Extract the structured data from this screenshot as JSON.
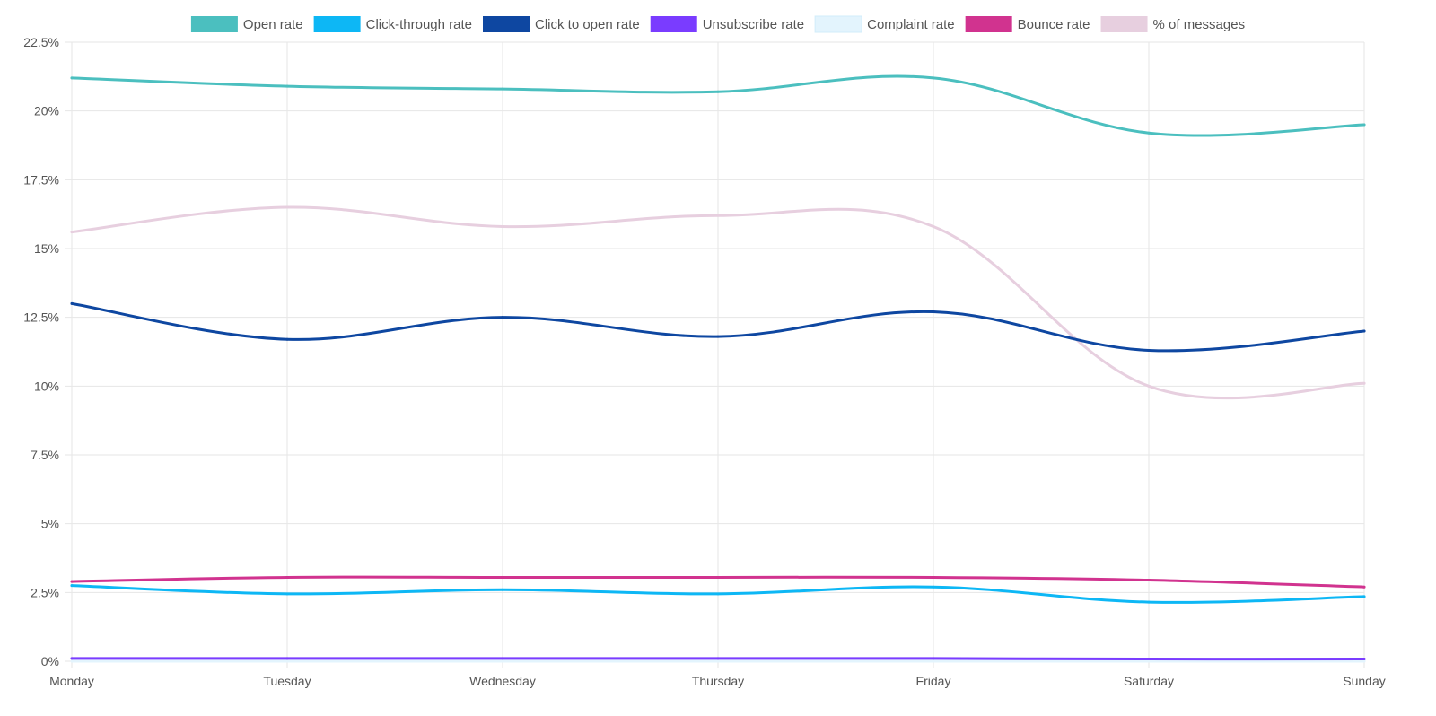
{
  "chart_data": {
    "type": "line",
    "title": "",
    "xlabel": "",
    "ylabel": "",
    "categories": [
      "Monday",
      "Tuesday",
      "Wednesday",
      "Thursday",
      "Friday",
      "Saturday",
      "Sunday"
    ],
    "ylim": [
      0,
      22.5
    ],
    "yticks": [
      0,
      2.5,
      5,
      7.5,
      10,
      12.5,
      15,
      17.5,
      20,
      22.5
    ],
    "ytick_labels": [
      "0%",
      "2.5%",
      "5%",
      "7.5%",
      "10%",
      "12.5%",
      "15%",
      "17.5%",
      "20%",
      "22.5%"
    ],
    "grid": true,
    "legend_position": "top-center",
    "series": [
      {
        "name": "Open rate",
        "color": "#4BBFBF",
        "values": [
          21.2,
          20.9,
          20.8,
          20.7,
          21.2,
          19.2,
          19.5
        ]
      },
      {
        "name": "Click-through rate",
        "color": "#0DB7F5",
        "values": [
          2.75,
          2.45,
          2.6,
          2.45,
          2.7,
          2.15,
          2.35
        ]
      },
      {
        "name": "Click to open rate",
        "color": "#0E47A1",
        "values": [
          13.0,
          11.7,
          12.5,
          11.8,
          12.7,
          11.3,
          12.0
        ]
      },
      {
        "name": "Unsubscribe rate",
        "color": "#7A3CFF",
        "values": [
          0.1,
          0.1,
          0.1,
          0.1,
          0.1,
          0.08,
          0.08
        ]
      },
      {
        "name": "Complaint rate",
        "color": "#E3F4FD",
        "values": [
          0.0,
          0.0,
          0.0,
          0.0,
          0.0,
          0.0,
          0.0
        ]
      },
      {
        "name": "Bounce rate",
        "color": "#D1338F",
        "values": [
          2.9,
          3.05,
          3.05,
          3.05,
          3.05,
          2.95,
          2.7
        ]
      },
      {
        "name": "% of messages",
        "color": "#E7CFDF",
        "values": [
          15.6,
          16.5,
          15.8,
          16.2,
          15.8,
          10.0,
          10.1
        ]
      }
    ]
  }
}
